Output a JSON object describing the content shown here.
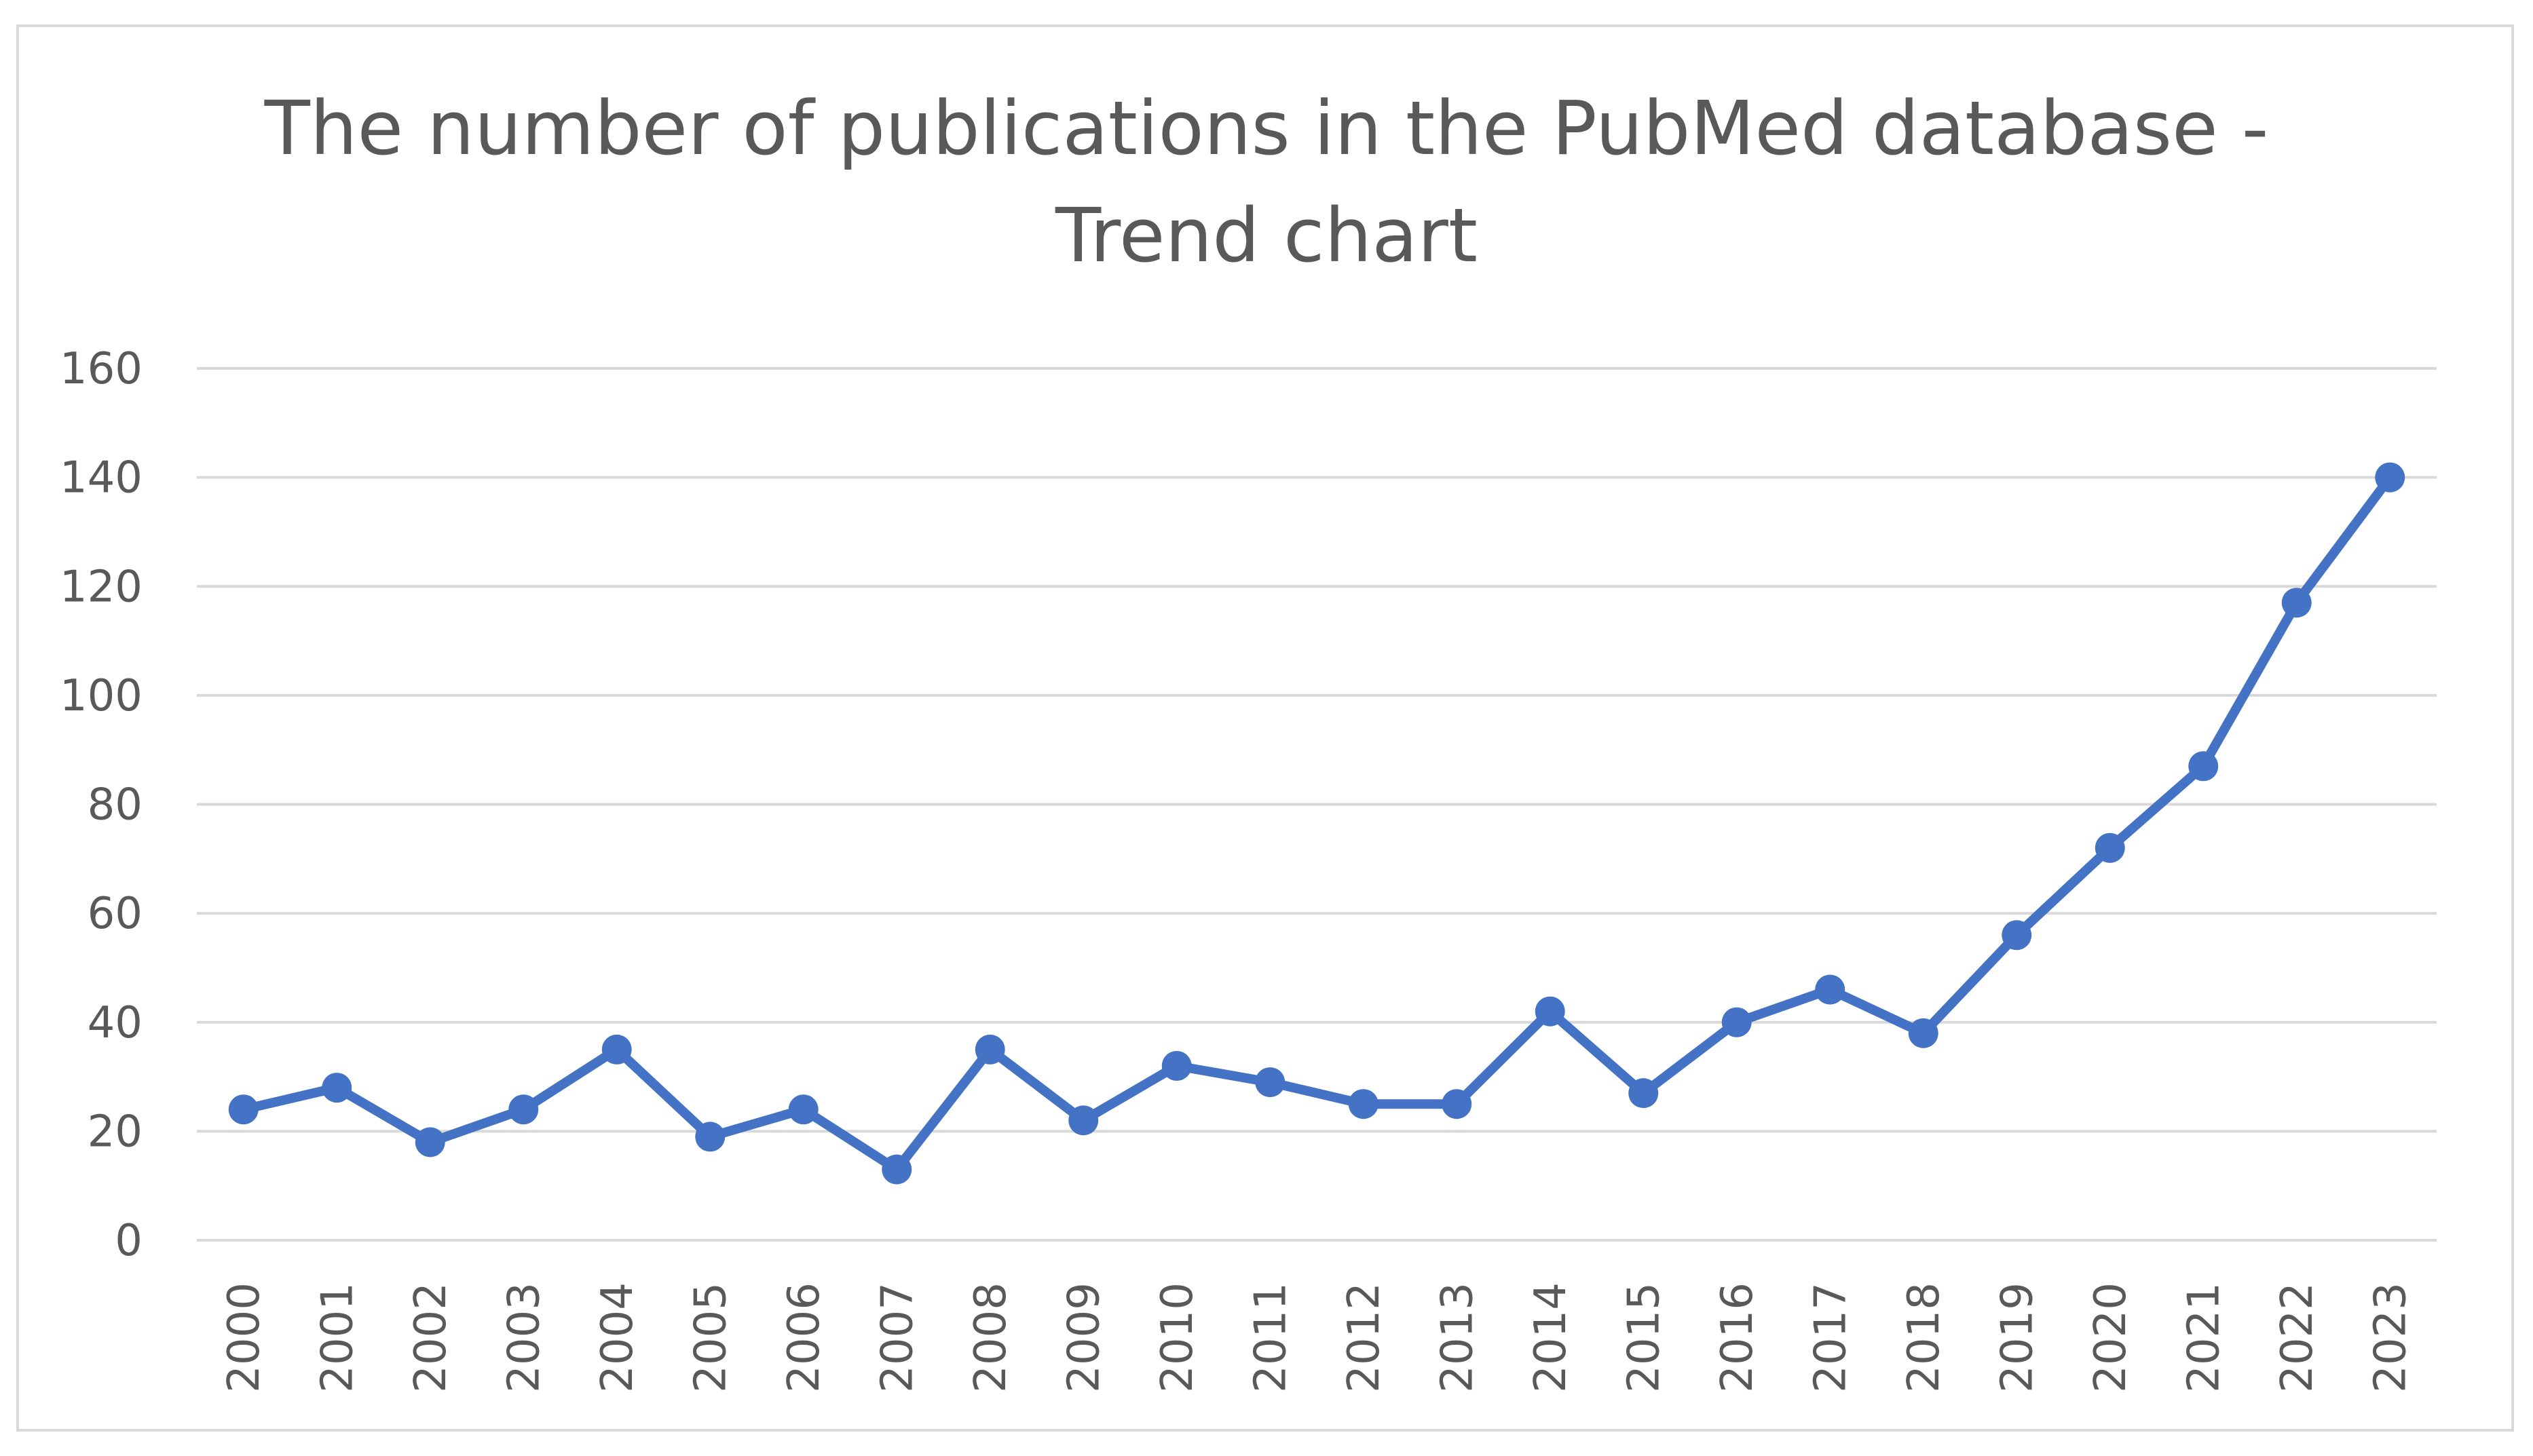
{
  "chart_data": {
    "type": "line",
    "title": "The number of publications in the PubMed database -\nTrend chart",
    "xlabel": "",
    "ylabel": "",
    "categories": [
      "2000",
      "2001",
      "2002",
      "2003",
      "2004",
      "2005",
      "2006",
      "2007",
      "2008",
      "2009",
      "2010",
      "2011",
      "2012",
      "2013",
      "2014",
      "2015",
      "2016",
      "2017",
      "2018",
      "2019",
      "2020",
      "2021",
      "2022",
      "2023"
    ],
    "series": [
      {
        "values": [
          24,
          28,
          18,
          24,
          35,
          19,
          24,
          13,
          35,
          22,
          32,
          29,
          25,
          25,
          42,
          27,
          40,
          46,
          38,
          56,
          72,
          87,
          117,
          140
        ]
      }
    ],
    "ylim": [
      0,
      160
    ],
    "yticks": [
      "0",
      "20",
      "40",
      "60",
      "80",
      "100",
      "120",
      "140",
      "160"
    ],
    "grid": true,
    "legend": "none",
    "colors": {
      "line": "#4472c4",
      "grid": "#d9d9d9",
      "text": "#595959"
    }
  }
}
